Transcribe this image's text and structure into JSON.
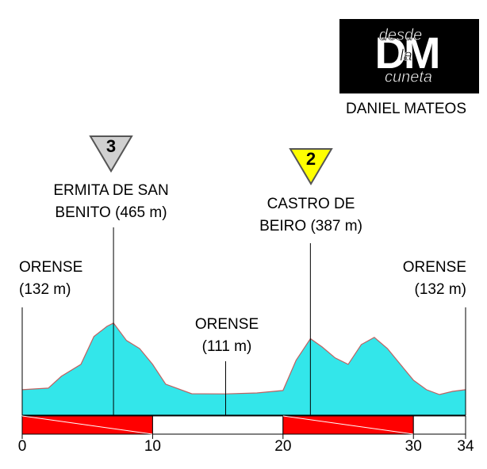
{
  "chart_data": {
    "type": "area",
    "logo": {
      "lines": [
        "desde",
        "la",
        "cuneta"
      ],
      "monogram": "DM"
    },
    "author": "DANIEL MATEOS",
    "x": [
      0,
      2,
      3,
      4.5,
      5.5,
      6.5,
      7,
      8,
      9,
      10,
      11,
      13,
      15.6,
      18,
      20,
      21,
      22.1,
      23,
      24,
      25,
      26,
      27,
      28,
      29,
      30,
      31,
      32,
      33,
      34
    ],
    "values": [
      132,
      140,
      199,
      259,
      398,
      449,
      465,
      378,
      338,
      259,
      160,
      112,
      111,
      116,
      128,
      279,
      387,
      346,
      291,
      259,
      358,
      394,
      338,
      259,
      180,
      132,
      108,
      124,
      132
    ],
    "color": "#33e6ea",
    "line_color": "#c06060",
    "xlim": [
      0,
      34
    ],
    "xticks": [
      0,
      10,
      20,
      30,
      34
    ],
    "ylim": [
      5,
      900
    ],
    "bar_color": "#ff0000",
    "annotations": [
      {
        "x": 0,
        "lines": [
          "ORENSE",
          "(132 m)"
        ]
      },
      {
        "x": 7,
        "lines": [
          "ERMITA DE SAN",
          "BENITO (465 m)"
        ],
        "category": "3",
        "badge_color": "#d0d0d0"
      },
      {
        "x": 15.6,
        "lines": [
          "ORENSE",
          "(111 m)"
        ]
      },
      {
        "x": 22.1,
        "lines": [
          "CASTRO DE",
          "BEIRO (387 m)"
        ],
        "category": "2",
        "badge_color": "#ffff00"
      },
      {
        "x": 34,
        "lines": [
          "ORENSE",
          "(132 m)"
        ]
      }
    ]
  }
}
